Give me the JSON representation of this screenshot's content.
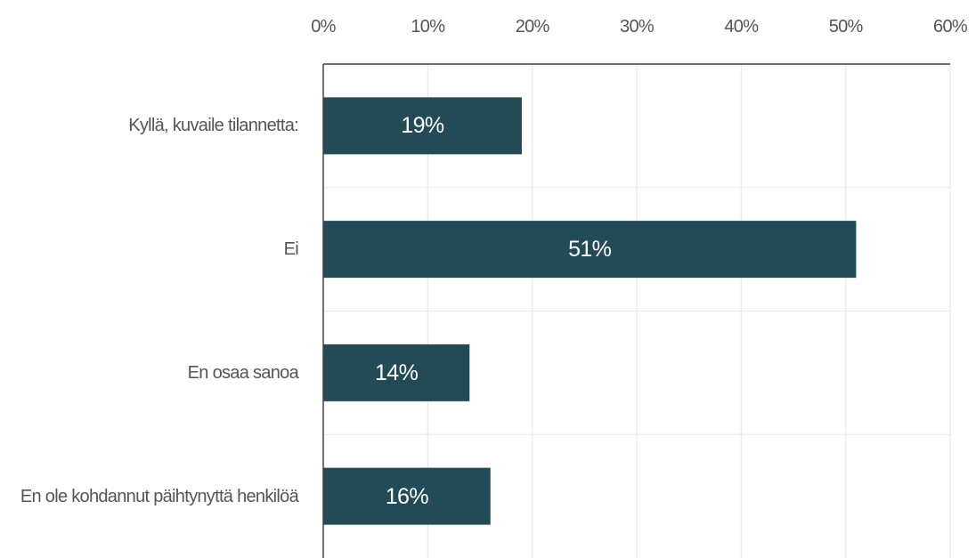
{
  "chart_data": {
    "type": "bar",
    "orientation": "horizontal",
    "categories": [
      "Kyllä, kuvaile tilannetta:",
      "Ei",
      "En osaa sanoa",
      "En ole kohdannut päihtynyttä henkilöä"
    ],
    "values": [
      19,
      51,
      14,
      16
    ],
    "value_labels": [
      "19%",
      "51%",
      "14%",
      "16%"
    ],
    "color": "#234b57",
    "xlim": [
      0,
      60
    ],
    "xticks": [
      {
        "value": 0,
        "label": "0%"
      },
      {
        "value": 10,
        "label": "10%"
      },
      {
        "value": 20,
        "label": "20%"
      },
      {
        "value": 30,
        "label": "30%"
      },
      {
        "value": 40,
        "label": "40%"
      },
      {
        "value": 50,
        "label": "50%"
      },
      {
        "value": 60,
        "label": "60%"
      }
    ],
    "grid": true
  }
}
